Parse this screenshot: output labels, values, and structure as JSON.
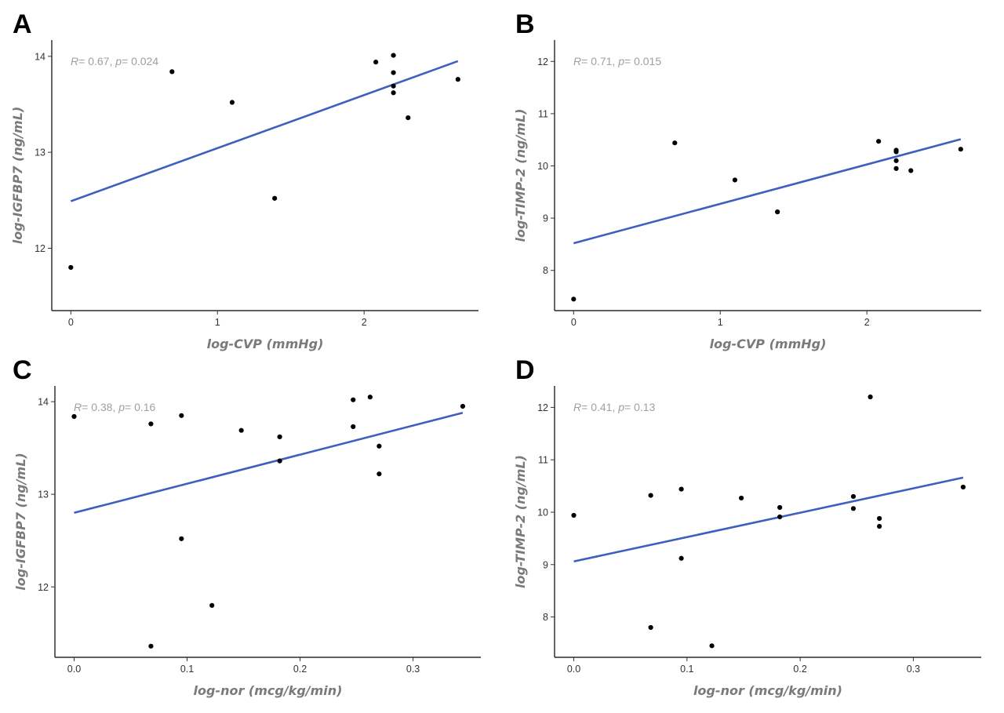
{
  "chart_data": [
    {
      "panel": "A",
      "type": "scatter",
      "xlabel": "log-CVP (mmHg)",
      "ylabel": "log-IGFBP7 (ng/mL)",
      "xlim": [
        -0.13,
        2.78
      ],
      "ylim": [
        11.35,
        14.17
      ],
      "xticks": [
        0,
        1,
        2
      ],
      "xtick_labels": [
        "0",
        "1",
        "2"
      ],
      "yticks": [
        12,
        13,
        14
      ],
      "ytick_labels": [
        "12",
        "13",
        "14"
      ],
      "annotation": {
        "r_label": "R",
        "r_value": "= 0.67, ",
        "p_label": "p",
        "p_value": "= 0.024"
      },
      "fit": {
        "x": [
          0,
          2.64
        ],
        "y": [
          12.49,
          13.95
        ]
      },
      "points": [
        [
          0,
          11.8
        ],
        [
          0.69,
          13.84
        ],
        [
          1.1,
          13.52
        ],
        [
          1.39,
          12.52
        ],
        [
          2.08,
          13.94
        ],
        [
          2.2,
          14.01
        ],
        [
          2.2,
          13.83
        ],
        [
          2.2,
          13.69
        ],
        [
          2.2,
          13.62
        ],
        [
          2.3,
          13.36
        ],
        [
          2.64,
          13.76
        ]
      ]
    },
    {
      "panel": "B",
      "type": "scatter",
      "xlabel": "log-CVP (mmHg)",
      "ylabel": "log-TIMP-2 (ng/mL)",
      "xlim": [
        -0.13,
        2.78
      ],
      "ylim": [
        7.23,
        12.41
      ],
      "xticks": [
        0,
        1,
        2
      ],
      "xtick_labels": [
        "0",
        "1",
        "2"
      ],
      "yticks": [
        8,
        9,
        10,
        11,
        12
      ],
      "ytick_labels": [
        "8",
        "9",
        "10",
        "11",
        "12"
      ],
      "annotation": {
        "r_label": "R",
        "r_value": "= 0.71, ",
        "p_label": "p",
        "p_value": "= 0.015"
      },
      "fit": {
        "x": [
          0,
          2.64
        ],
        "y": [
          8.52,
          10.51
        ]
      },
      "points": [
        [
          0,
          7.45
        ],
        [
          0.69,
          10.44
        ],
        [
          1.1,
          9.73
        ],
        [
          1.39,
          9.12
        ],
        [
          2.08,
          10.47
        ],
        [
          2.2,
          10.3
        ],
        [
          2.2,
          10.27
        ],
        [
          2.2,
          10.1
        ],
        [
          2.2,
          9.95
        ],
        [
          2.3,
          9.91
        ],
        [
          2.64,
          10.32
        ]
      ]
    },
    {
      "panel": "C",
      "type": "scatter",
      "xlabel": "log-nor (mcg/kg/min)",
      "ylabel": "log-IGFBP7 (ng/mL)",
      "xlim": [
        -0.017,
        0.36
      ],
      "ylim": [
        11.24,
        14.17
      ],
      "xticks": [
        0,
        0.1,
        0.2,
        0.3
      ],
      "xtick_labels": [
        "0.0",
        "0.1",
        "0.2",
        "0.3"
      ],
      "yticks": [
        12,
        13,
        14
      ],
      "ytick_labels": [
        "12",
        "13",
        "14"
      ],
      "annotation": {
        "r_label": "R",
        "r_value": "= 0.38, ",
        "p_label": "p",
        "p_value": "= 0.16"
      },
      "fit": {
        "x": [
          0,
          0.344
        ],
        "y": [
          12.8,
          13.88
        ]
      },
      "points": [
        [
          0,
          13.84
        ],
        [
          0.068,
          13.76
        ],
        [
          0.068,
          11.36
        ],
        [
          0.095,
          13.85
        ],
        [
          0.095,
          12.52
        ],
        [
          0.122,
          11.8
        ],
        [
          0.148,
          13.69
        ],
        [
          0.182,
          13.62
        ],
        [
          0.182,
          13.36
        ],
        [
          0.247,
          14.02
        ],
        [
          0.247,
          13.73
        ],
        [
          0.262,
          14.05
        ],
        [
          0.27,
          13.52
        ],
        [
          0.27,
          13.22
        ],
        [
          0.344,
          13.95
        ]
      ]
    },
    {
      "panel": "D",
      "type": "scatter",
      "xlabel": "log-nor (mcg/kg/min)",
      "ylabel": "log-TIMP-2 (ng/mL)",
      "xlim": [
        -0.017,
        0.36
      ],
      "ylim": [
        7.23,
        12.41
      ],
      "xticks": [
        0,
        0.1,
        0.2,
        0.3
      ],
      "xtick_labels": [
        "0.0",
        "0.1",
        "0.2",
        "0.3"
      ],
      "yticks": [
        8,
        9,
        10,
        11,
        12
      ],
      "ytick_labels": [
        "8",
        "9",
        "10",
        "11",
        "12"
      ],
      "annotation": {
        "r_label": "R",
        "r_value": "= 0.41, ",
        "p_label": "p",
        "p_value": "= 0.13"
      },
      "fit": {
        "x": [
          0,
          0.344
        ],
        "y": [
          9.06,
          10.66
        ]
      },
      "points": [
        [
          0,
          9.94
        ],
        [
          0.068,
          10.32
        ],
        [
          0.068,
          7.8
        ],
        [
          0.095,
          10.44
        ],
        [
          0.095,
          9.12
        ],
        [
          0.122,
          7.45
        ],
        [
          0.148,
          10.27
        ],
        [
          0.182,
          10.09
        ],
        [
          0.182,
          9.91
        ],
        [
          0.247,
          10.3
        ],
        [
          0.247,
          10.07
        ],
        [
          0.262,
          12.2
        ],
        [
          0.27,
          9.88
        ],
        [
          0.27,
          9.73
        ],
        [
          0.344,
          10.48
        ]
      ]
    }
  ]
}
